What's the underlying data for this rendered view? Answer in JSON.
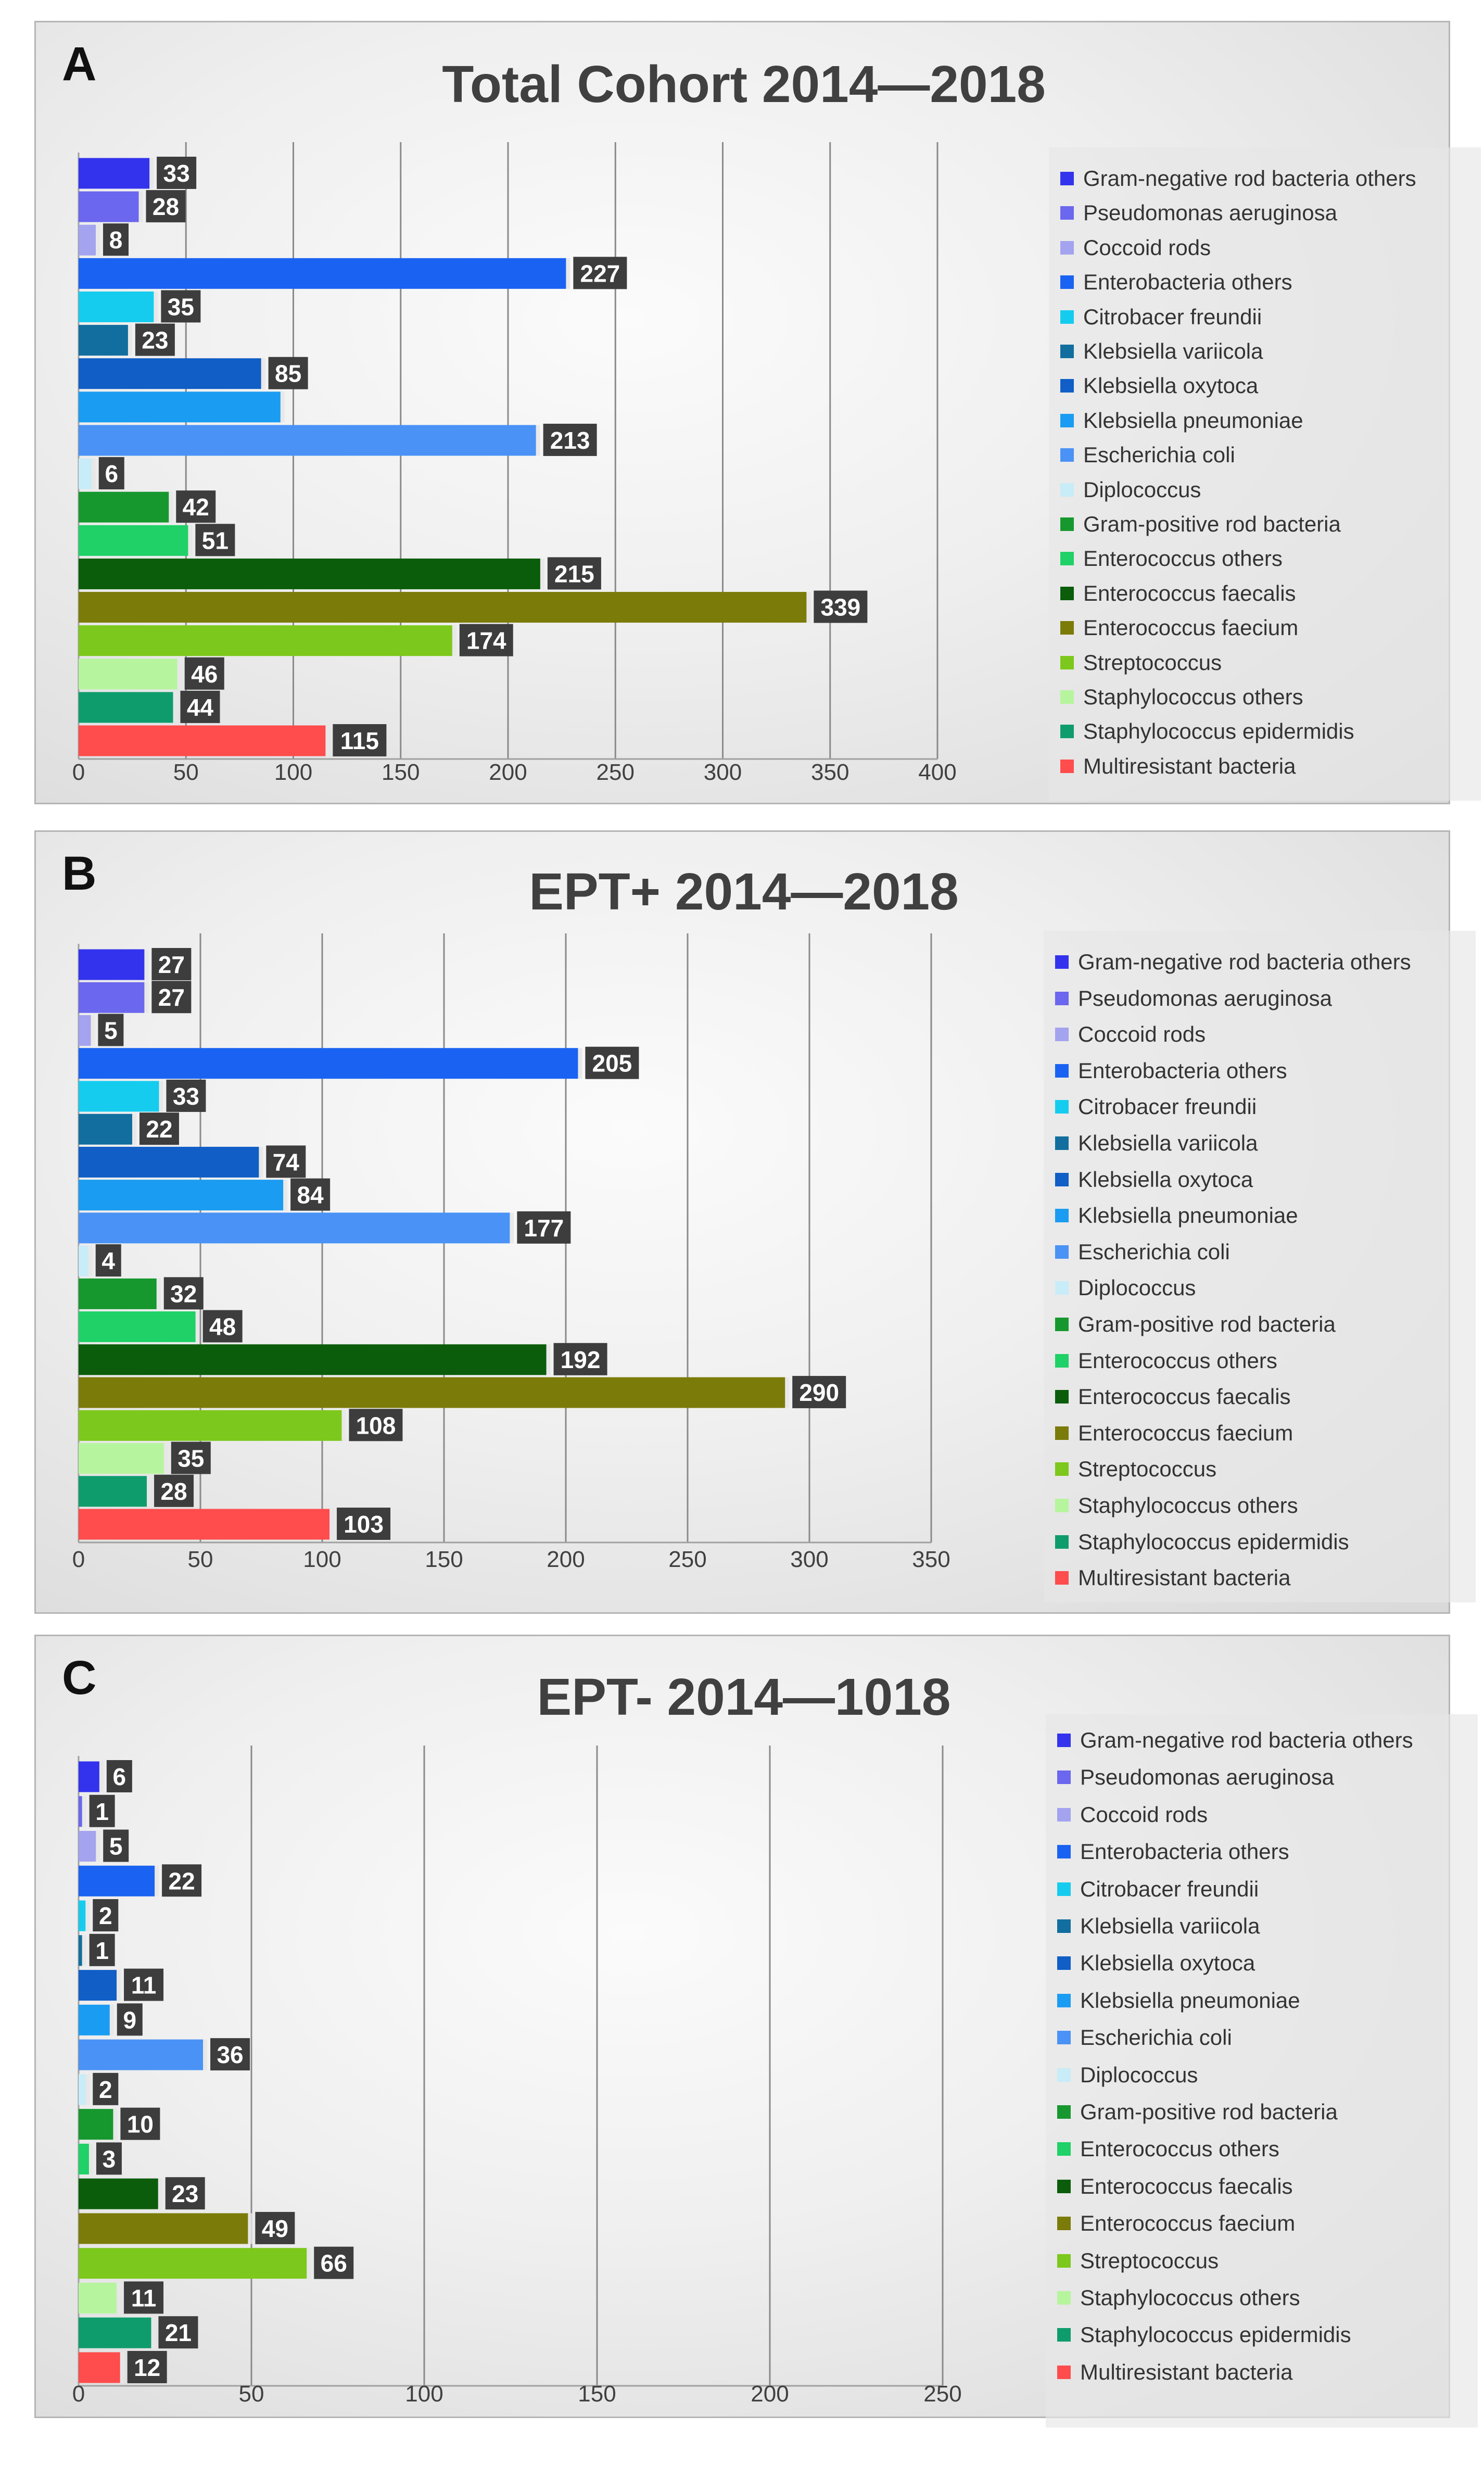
{
  "colors": [
    "#3333ee",
    "#6b67ee",
    "#a3a3ef",
    "#1a63f2",
    "#15ccef",
    "#116e9e",
    "#105ec6",
    "#1a9cf2",
    "#4a92f5",
    "#c8ecf8",
    "#16982e",
    "#1fd166",
    "#0b5d0b",
    "#7b7b0a",
    "#7dc81c",
    "#b6f59e",
    "#0f9c6d",
    "#ff4c4c"
  ],
  "legend_labels": [
    "Gram-negative rod bacteria others",
    "Pseudomonas aeruginosa",
    "Coccoid rods",
    "Enterobacteria others",
    "Citrobacer freundii",
    "Klebsiella variicola",
    "Klebsiella oxytoca",
    "Klebsiella pneumoniae",
    "Escherichia coli",
    "Diplococcus",
    "Gram-positive rod bacteria",
    "Enterococcus others",
    "Enterococcus faecalis",
    "Enterococcus faecium",
    "Streptococcus",
    "Staphylococcus others",
    "Staphylococcus epidermidis",
    "Multiresistant bacteria"
  ],
  "panels": [
    {
      "letter": "A",
      "title": "Total Cohort 2014—2018"
    },
    {
      "letter": "B",
      "title": "EPT+ 2014—2018"
    },
    {
      "letter": "C",
      "title": "EPT- 2014—1018"
    }
  ],
  "chart_data": [
    {
      "type": "bar",
      "orientation": "horizontal",
      "title": "Total Cohort 2014—2018",
      "categories": [
        "Gram-negative rod bacteria others",
        "Pseudomonas aeruginosa",
        "Coccoid rods",
        "Enterobacteria others",
        "Citrobacer freundii",
        "Klebsiella variicola",
        "Klebsiella oxytoca",
        "Klebsiella pneumoniae",
        "Escherichia coli",
        "Diplococcus",
        "Gram-positive rod bacteria",
        "Enterococcus others",
        "Enterococcus faecalis",
        "Enterococcus faecium",
        "Streptococcus",
        "Staphylococcus others",
        "Staphylococcus epidermidis",
        "Multiresistant bacteria"
      ],
      "values": [
        33,
        28,
        8,
        227,
        35,
        23,
        85,
        94,
        213,
        6,
        42,
        51,
        215,
        339,
        174,
        46,
        44,
        115
      ],
      "labels": [
        "33",
        "28",
        "8",
        "227",
        "35",
        "23",
        "85",
        "",
        "213",
        "6",
        "42",
        "51",
        "215",
        "339",
        "174",
        "46",
        "44",
        "115"
      ],
      "xlim": [
        0,
        400
      ],
      "ticks": [
        0,
        50,
        100,
        150,
        200,
        250,
        300,
        350,
        400
      ],
      "xlabel": "",
      "ylabel": "",
      "legend": "right"
    },
    {
      "type": "bar",
      "orientation": "horizontal",
      "title": "EPT+ 2014—2018",
      "categories": [
        "Gram-negative rod bacteria others",
        "Pseudomonas aeruginosa",
        "Coccoid rods",
        "Enterobacteria others",
        "Citrobacer freundii",
        "Klebsiella variicola",
        "Klebsiella oxytoca",
        "Klebsiella pneumoniae",
        "Escherichia coli",
        "Diplococcus",
        "Gram-positive rod bacteria",
        "Enterococcus others",
        "Enterococcus faecalis",
        "Enterococcus faecium",
        "Streptococcus",
        "Staphylococcus others",
        "Staphylococcus epidermidis",
        "Multiresistant bacteria"
      ],
      "values": [
        27,
        27,
        5,
        205,
        33,
        22,
        74,
        84,
        177,
        4,
        32,
        48,
        192,
        290,
        108,
        35,
        28,
        103
      ],
      "labels": [
        "27",
        "27",
        "5",
        "205",
        "33",
        "22",
        "74",
        "84",
        "177",
        "4",
        "32",
        "48",
        "192",
        "290",
        "108",
        "35",
        "28",
        "103"
      ],
      "xlim": [
        0,
        350
      ],
      "ticks": [
        0,
        50,
        100,
        150,
        200,
        250,
        300,
        350
      ],
      "xlabel": "",
      "ylabel": "",
      "legend": "right"
    },
    {
      "type": "bar",
      "orientation": "horizontal",
      "title": "EPT- 2014—1018",
      "categories": [
        "Gram-negative rod bacteria others",
        "Pseudomonas aeruginosa",
        "Coccoid rods",
        "Enterobacteria others",
        "Citrobacer freundii",
        "Klebsiella variicola",
        "Klebsiella oxytoca",
        "Klebsiella pneumoniae",
        "Escherichia coli",
        "Diplococcus",
        "Gram-positive rod bacteria",
        "Enterococcus others",
        "Enterococcus faecalis",
        "Enterococcus faecium",
        "Streptococcus",
        "Staphylococcus others",
        "Staphylococcus epidermidis",
        "Multiresistant bacteria"
      ],
      "values": [
        6,
        1,
        5,
        22,
        2,
        1,
        11,
        9,
        36,
        2,
        10,
        3,
        23,
        49,
        66,
        11,
        21,
        12
      ],
      "labels": [
        "6",
        "1",
        "5",
        "22",
        "2",
        "1",
        "11",
        "9",
        "36",
        "2",
        "10",
        "3",
        "23",
        "49",
        "66",
        "11",
        "21",
        "12"
      ],
      "xlim": [
        0,
        250
      ],
      "ticks": [
        0,
        50,
        100,
        150,
        200,
        250
      ],
      "xlabel": "",
      "ylabel": "",
      "legend": "right"
    }
  ]
}
